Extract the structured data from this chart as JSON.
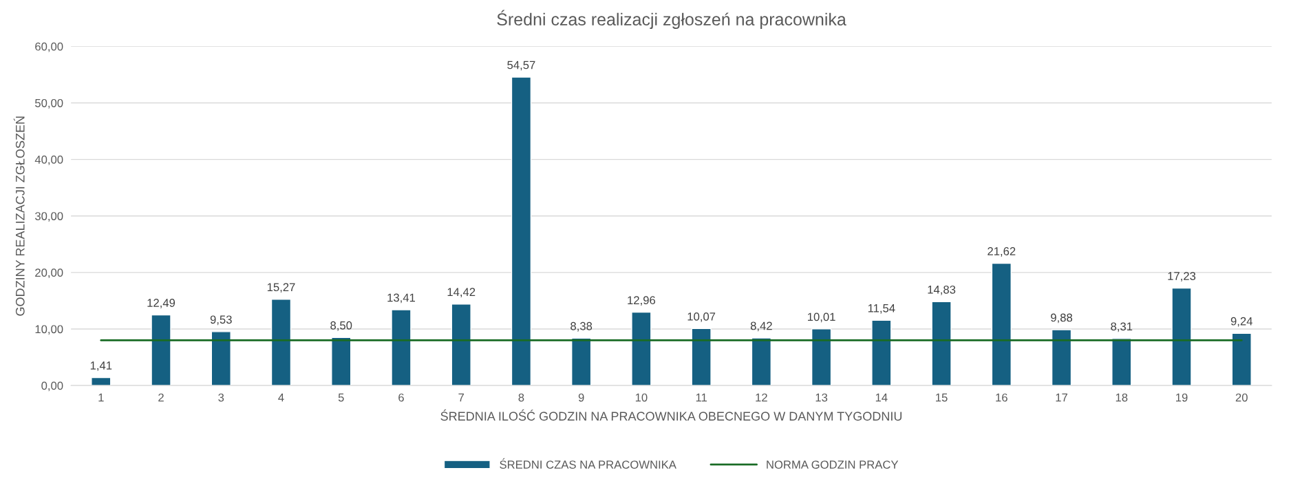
{
  "chart_data": {
    "type": "bar",
    "title": "Średni czas realizacji zgłoszeń na pracownika",
    "xlabel": "ŚREDNIA ILOŚĆ GODZIN NA PRACOWNIKA OBECNEGO W DANYM TYGODNIU",
    "ylabel": "GODZINY REALIZACJI ZGŁOSZEŃ",
    "categories": [
      "1",
      "2",
      "3",
      "4",
      "5",
      "6",
      "7",
      "8",
      "9",
      "10",
      "11",
      "12",
      "13",
      "14",
      "15",
      "16",
      "17",
      "18",
      "19",
      "20"
    ],
    "series": [
      {
        "name": "ŚREDNI CZAS NA PRACOWNIKA",
        "color": "#156082",
        "values": [
          1.41,
          12.49,
          9.53,
          15.27,
          8.5,
          13.41,
          14.42,
          54.57,
          8.38,
          12.96,
          10.07,
          8.42,
          10.01,
          11.54,
          14.83,
          21.62,
          9.88,
          8.31,
          17.23,
          9.24
        ],
        "value_labels": [
          "1,41",
          "12,49",
          "9,53",
          "15,27",
          "8,50",
          "13,41",
          "14,42",
          "54,57",
          "8,38",
          "12,96",
          "10,07",
          "8,42",
          "10,01",
          "11,54",
          "14,83",
          "21,62",
          "9,88",
          "8,31",
          "17,23",
          "9,24"
        ]
      },
      {
        "name": "NORMA GODZIN PRACY",
        "type": "line",
        "color": "#196b24",
        "values": [
          8,
          8,
          8,
          8,
          8,
          8,
          8,
          8,
          8,
          8,
          8,
          8,
          8,
          8,
          8,
          8,
          8,
          8,
          8,
          8
        ]
      }
    ],
    "ylim": [
      0,
      60
    ],
    "yticks": [
      {
        "value": 0,
        "label": "0,00"
      },
      {
        "value": 10,
        "label": "10,00"
      },
      {
        "value": 20,
        "label": "20,00"
      },
      {
        "value": 30,
        "label": "30,00"
      },
      {
        "value": 40,
        "label": "40,00"
      },
      {
        "value": 50,
        "label": "50,00"
      },
      {
        "value": 60,
        "label": "60,00"
      }
    ],
    "grid": "y",
    "legend": "bottom"
  }
}
